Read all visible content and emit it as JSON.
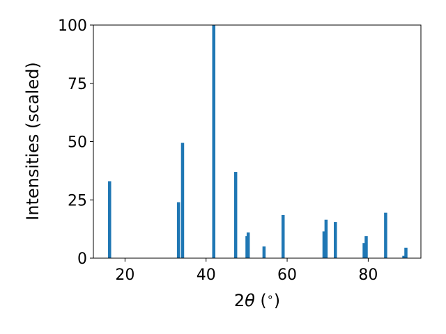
{
  "chart_data": {
    "type": "bar",
    "xlabel_parts": [
      "2",
      "θ",
      " (",
      "∘",
      ")"
    ],
    "ylabel": "Intensities (scaled)",
    "xlim": [
      12.2,
      93.0
    ],
    "ylim": [
      0,
      100
    ],
    "xticks": [
      20,
      40,
      60,
      80
    ],
    "yticks": [
      0,
      25,
      50,
      75,
      100
    ],
    "bar_color": "#1f77b4",
    "x": [
      16.2,
      33.2,
      34.2,
      41.9,
      47.3,
      50.1,
      50.4,
      54.3,
      59.0,
      69.1,
      69.6,
      71.9,
      79.0,
      79.5,
      84.3,
      88.8,
      89.3
    ],
    "values": [
      33,
      24,
      49.5,
      100,
      37,
      9.5,
      11,
      5,
      18.5,
      11.5,
      16.5,
      15.5,
      6.5,
      9.5,
      19.5,
      1,
      4.5
    ]
  }
}
